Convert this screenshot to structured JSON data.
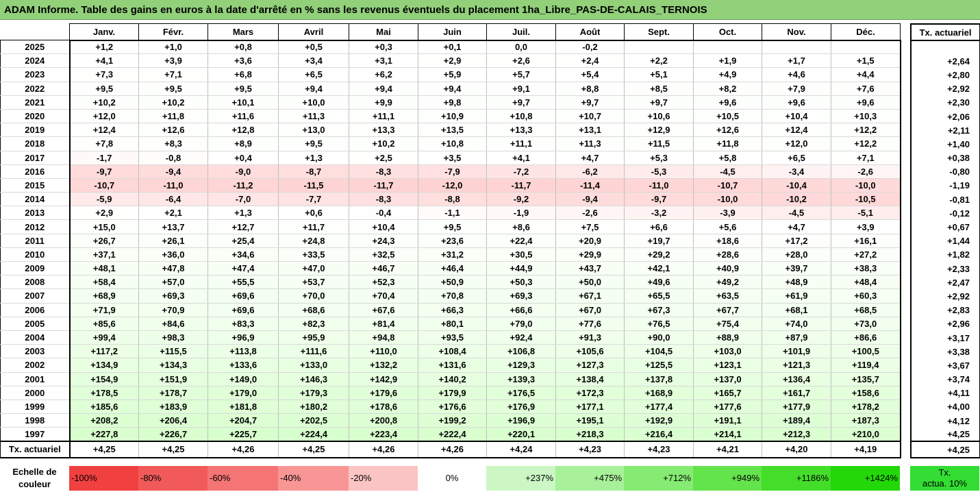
{
  "title": "ADAM Informe. Table des gains en euros à la date d'arrêté en % sans les revenus éventuels du placement 1ha_Libre_PAS-DE-CALAIS_TERNOIS",
  "months": [
    "Janv.",
    "Févr.",
    "Mars",
    "Avril",
    "Mai",
    "Juin",
    "Juil.",
    "Août",
    "Sept.",
    "Oct.",
    "Nov.",
    "Déc."
  ],
  "tx_header": "Tx. actuariel",
  "rows": [
    {
      "year": "2025",
      "values": [
        "+1,2",
        "+1,0",
        "+0,8",
        "+0,5",
        "+0,3",
        "+0,1",
        "0,0",
        "-0,2",
        "",
        "",
        "",
        ""
      ],
      "tx": ""
    },
    {
      "year": "2024",
      "values": [
        "+4,1",
        "+3,9",
        "+3,6",
        "+3,4",
        "+3,1",
        "+2,9",
        "+2,6",
        "+2,4",
        "+2,2",
        "+1,9",
        "+1,7",
        "+1,5"
      ],
      "tx": "+2,64"
    },
    {
      "year": "2023",
      "values": [
        "+7,3",
        "+7,1",
        "+6,8",
        "+6,5",
        "+6,2",
        "+5,9",
        "+5,7",
        "+5,4",
        "+5,1",
        "+4,9",
        "+4,6",
        "+4,4"
      ],
      "tx": "+2,80"
    },
    {
      "year": "2022",
      "values": [
        "+9,5",
        "+9,5",
        "+9,5",
        "+9,4",
        "+9,4",
        "+9,4",
        "+9,1",
        "+8,8",
        "+8,5",
        "+8,2",
        "+7,9",
        "+7,6"
      ],
      "tx": "+2,92"
    },
    {
      "year": "2021",
      "values": [
        "+10,2",
        "+10,2",
        "+10,1",
        "+10,0",
        "+9,9",
        "+9,8",
        "+9,7",
        "+9,7",
        "+9,7",
        "+9,6",
        "+9,6",
        "+9,6"
      ],
      "tx": "+2,30"
    },
    {
      "year": "2020",
      "values": [
        "+12,0",
        "+11,8",
        "+11,6",
        "+11,3",
        "+11,1",
        "+10,9",
        "+10,8",
        "+10,7",
        "+10,6",
        "+10,5",
        "+10,4",
        "+10,3"
      ],
      "tx": "+2,06"
    },
    {
      "year": "2019",
      "values": [
        "+12,4",
        "+12,6",
        "+12,8",
        "+13,0",
        "+13,3",
        "+13,5",
        "+13,3",
        "+13,1",
        "+12,9",
        "+12,6",
        "+12,4",
        "+12,2"
      ],
      "tx": "+2,11"
    },
    {
      "year": "2018",
      "values": [
        "+7,8",
        "+8,3",
        "+8,9",
        "+9,5",
        "+10,2",
        "+10,8",
        "+11,1",
        "+11,3",
        "+11,5",
        "+11,8",
        "+12,0",
        "+12,2"
      ],
      "tx": "+1,40"
    },
    {
      "year": "2017",
      "values": [
        "-1,7",
        "-0,8",
        "+0,4",
        "+1,3",
        "+2,5",
        "+3,5",
        "+4,1",
        "+4,7",
        "+5,3",
        "+5,8",
        "+6,5",
        "+7,1"
      ],
      "tx": "+0,38"
    },
    {
      "year": "2016",
      "values": [
        "-9,7",
        "-9,4",
        "-9,0",
        "-8,7",
        "-8,3",
        "-7,9",
        "-7,2",
        "-6,2",
        "-5,3",
        "-4,5",
        "-3,4",
        "-2,6"
      ],
      "tx": "-0,80"
    },
    {
      "year": "2015",
      "values": [
        "-10,7",
        "-11,0",
        "-11,2",
        "-11,5",
        "-11,7",
        "-12,0",
        "-11,7",
        "-11,4",
        "-11,0",
        "-10,7",
        "-10,4",
        "-10,0"
      ],
      "tx": "-1,19"
    },
    {
      "year": "2014",
      "values": [
        "-5,9",
        "-6,4",
        "-7,0",
        "-7,7",
        "-8,3",
        "-8,8",
        "-9,2",
        "-9,4",
        "-9,7",
        "-10,0",
        "-10,2",
        "-10,5"
      ],
      "tx": "-0,81"
    },
    {
      "year": "2013",
      "values": [
        "+2,9",
        "+2,1",
        "+1,3",
        "+0,6",
        "-0,4",
        "-1,1",
        "-1,9",
        "-2,6",
        "-3,2",
        "-3,9",
        "-4,5",
        "-5,1"
      ],
      "tx": "-0,12"
    },
    {
      "year": "2012",
      "values": [
        "+15,0",
        "+13,7",
        "+12,7",
        "+11,7",
        "+10,4",
        "+9,5",
        "+8,6",
        "+7,5",
        "+6,6",
        "+5,6",
        "+4,7",
        "+3,9"
      ],
      "tx": "+0,67"
    },
    {
      "year": "2011",
      "values": [
        "+26,7",
        "+26,1",
        "+25,4",
        "+24,8",
        "+24,3",
        "+23,6",
        "+22,4",
        "+20,9",
        "+19,7",
        "+18,6",
        "+17,2",
        "+16,1"
      ],
      "tx": "+1,44"
    },
    {
      "year": "2010",
      "values": [
        "+37,1",
        "+36,0",
        "+34,6",
        "+33,5",
        "+32,5",
        "+31,2",
        "+30,5",
        "+29,9",
        "+29,2",
        "+28,6",
        "+28,0",
        "+27,2"
      ],
      "tx": "+1,82"
    },
    {
      "year": "2009",
      "values": [
        "+48,1",
        "+47,8",
        "+47,4",
        "+47,0",
        "+46,7",
        "+46,4",
        "+44,9",
        "+43,7",
        "+42,1",
        "+40,9",
        "+39,7",
        "+38,3"
      ],
      "tx": "+2,33"
    },
    {
      "year": "2008",
      "values": [
        "+58,4",
        "+57,0",
        "+55,5",
        "+53,7",
        "+52,3",
        "+50,9",
        "+50,3",
        "+50,0",
        "+49,6",
        "+49,2",
        "+48,9",
        "+48,4"
      ],
      "tx": "+2,47"
    },
    {
      "year": "2007",
      "values": [
        "+68,9",
        "+69,3",
        "+69,6",
        "+70,0",
        "+70,4",
        "+70,8",
        "+69,3",
        "+67,1",
        "+65,5",
        "+63,5",
        "+61,9",
        "+60,3"
      ],
      "tx": "+2,92"
    },
    {
      "year": "2006",
      "values": [
        "+71,9",
        "+70,9",
        "+69,6",
        "+68,6",
        "+67,6",
        "+66,3",
        "+66,6",
        "+67,0",
        "+67,3",
        "+67,7",
        "+68,1",
        "+68,5"
      ],
      "tx": "+2,83"
    },
    {
      "year": "2005",
      "values": [
        "+85,6",
        "+84,6",
        "+83,3",
        "+82,3",
        "+81,4",
        "+80,1",
        "+79,0",
        "+77,6",
        "+76,5",
        "+75,4",
        "+74,0",
        "+73,0"
      ],
      "tx": "+2,96"
    },
    {
      "year": "2004",
      "values": [
        "+99,4",
        "+98,3",
        "+96,9",
        "+95,9",
        "+94,8",
        "+93,5",
        "+92,4",
        "+91,3",
        "+90,0",
        "+88,9",
        "+87,9",
        "+86,6"
      ],
      "tx": "+3,17"
    },
    {
      "year": "2003",
      "values": [
        "+117,2",
        "+115,5",
        "+113,8",
        "+111,6",
        "+110,0",
        "+108,4",
        "+106,8",
        "+105,6",
        "+104,5",
        "+103,0",
        "+101,9",
        "+100,5"
      ],
      "tx": "+3,38"
    },
    {
      "year": "2002",
      "values": [
        "+134,9",
        "+134,3",
        "+133,6",
        "+133,0",
        "+132,2",
        "+131,6",
        "+129,3",
        "+127,3",
        "+125,5",
        "+123,1",
        "+121,3",
        "+119,4"
      ],
      "tx": "+3,67"
    },
    {
      "year": "2001",
      "values": [
        "+154,9",
        "+151,9",
        "+149,0",
        "+146,3",
        "+142,9",
        "+140,2",
        "+139,3",
        "+138,4",
        "+137,8",
        "+137,0",
        "+136,4",
        "+135,7"
      ],
      "tx": "+3,74"
    },
    {
      "year": "2000",
      "values": [
        "+178,5",
        "+178,7",
        "+179,0",
        "+179,3",
        "+179,6",
        "+179,9",
        "+176,5",
        "+172,3",
        "+168,9",
        "+165,7",
        "+161,7",
        "+158,6"
      ],
      "tx": "+4,11"
    },
    {
      "year": "1999",
      "values": [
        "+185,6",
        "+183,9",
        "+181,8",
        "+180,2",
        "+178,6",
        "+176,6",
        "+176,9",
        "+177,1",
        "+177,4",
        "+177,6",
        "+177,9",
        "+178,2"
      ],
      "tx": "+4,00"
    },
    {
      "year": "1998",
      "values": [
        "+208,2",
        "+206,4",
        "+204,7",
        "+202,5",
        "+200,8",
        "+199,2",
        "+196,9",
        "+195,1",
        "+192,9",
        "+191,1",
        "+189,4",
        "+187,3"
      ],
      "tx": "+4,12"
    },
    {
      "year": "1997",
      "values": [
        "+227,8",
        "+226,7",
        "+225,7",
        "+224,4",
        "+223,4",
        "+222,4",
        "+220,1",
        "+218,3",
        "+216,4",
        "+214,1",
        "+212,3",
        "+210,0"
      ],
      "tx": "+4,25"
    }
  ],
  "footer": {
    "label": "Tx. actuariel",
    "values": [
      "+4,25",
      "+4,25",
      "+4,26",
      "+4,25",
      "+4,26",
      "+4,26",
      "+4,24",
      "+4,23",
      "+4,23",
      "+4,21",
      "+4,20",
      "+4,19"
    ],
    "tx": "+4,25"
  },
  "legend": {
    "label_line1": "Echelle de",
    "label_line2": "couleur",
    "items": [
      {
        "text": "-100%",
        "color": "#f04040",
        "align": "left"
      },
      {
        "text": "-80%",
        "color": "#f25a5a",
        "align": "left"
      },
      {
        "text": "-60%",
        "color": "#f57474",
        "align": "left"
      },
      {
        "text": "-40%",
        "color": "#f89696",
        "align": "left"
      },
      {
        "text": "-20%",
        "color": "#fbc4c4",
        "align": "left"
      },
      {
        "text": "0%",
        "color": "#ffffff",
        "align": "center"
      },
      {
        "text": "+237%",
        "color": "#ccf7c4",
        "align": "right"
      },
      {
        "text": "+475%",
        "color": "#a8f19a",
        "align": "right"
      },
      {
        "text": "+712%",
        "color": "#86eb72",
        "align": "right"
      },
      {
        "text": "+949%",
        "color": "#64e44c",
        "align": "right"
      },
      {
        "text": "+1186%",
        "color": "#44de2a",
        "align": "right"
      },
      {
        "text": "+1424%",
        "color": "#22d808",
        "align": "right"
      }
    ],
    "tx_line1": "Tx.",
    "tx_line2": "actua. 10%"
  }
}
